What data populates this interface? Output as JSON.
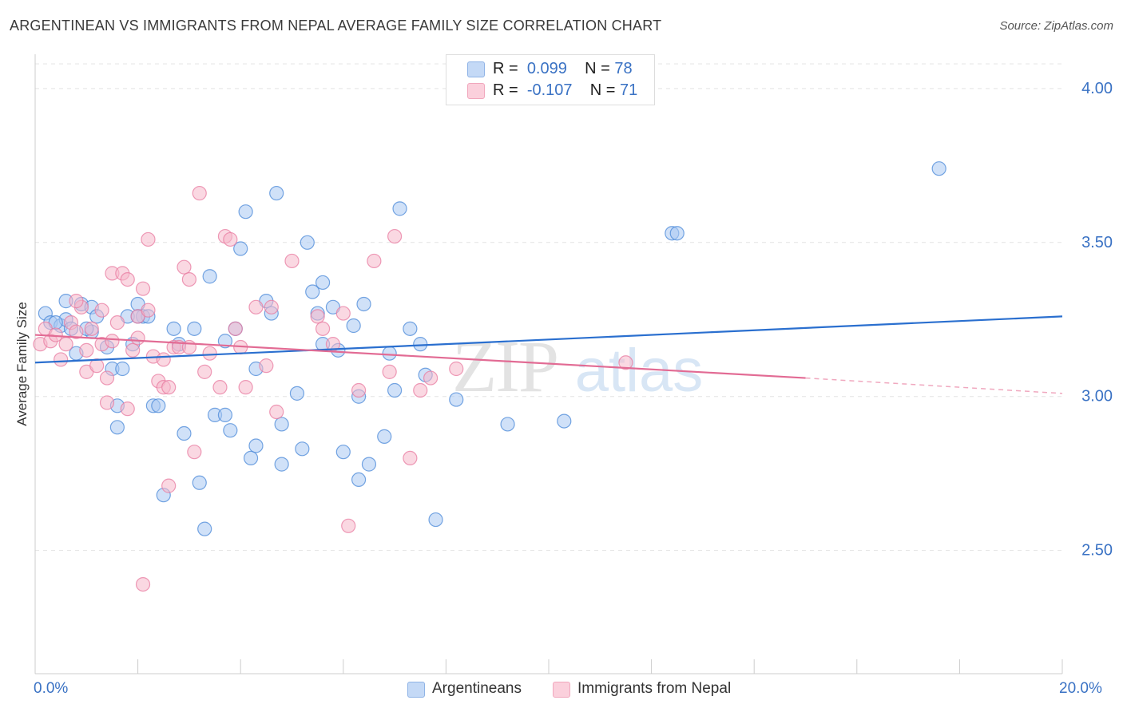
{
  "title": "ARGENTINEAN VS IMMIGRANTS FROM NEPAL AVERAGE FAMILY SIZE CORRELATION CHART",
  "source": "Source: ZipAtlas.com",
  "watermark": {
    "zip": "ZIP",
    "atlas": "atlas"
  },
  "legend_stats": [
    {
      "r_label": "R =",
      "r_value": "0.099",
      "n_label": "N =",
      "n_value": "78",
      "color": "#a9c8f2"
    },
    {
      "r_label": "R =",
      "r_value": "-0.107",
      "n_label": "N =",
      "n_value": "71",
      "color": "#f6b8cb"
    }
  ],
  "chart_data": {
    "type": "scatter",
    "xlabel": "",
    "ylabel": "Average Family Size",
    "xlim": [
      0,
      20
    ],
    "ylim": [
      2.1,
      4.08
    ],
    "x_tick_labels": [
      "0.0%",
      "20.0%"
    ],
    "y_ticks": [
      2.5,
      3.0,
      3.5,
      4.0
    ],
    "y_tick_labels": [
      "2.50",
      "3.00",
      "3.50",
      "4.00"
    ],
    "grid": true,
    "legend_position": "bottom",
    "series": [
      {
        "name": "Argentineans",
        "color": "#4a88d8",
        "fill": "#a9c8f2",
        "trend": {
          "x": [
            0,
            20
          ],
          "y": [
            3.11,
            3.26
          ],
          "color": "#2a6fcf"
        },
        "points": [
          [
            0.2,
            3.27
          ],
          [
            0.3,
            3.24
          ],
          [
            0.5,
            3.23
          ],
          [
            0.6,
            3.25
          ],
          [
            0.7,
            3.22
          ],
          [
            0.6,
            3.31
          ],
          [
            0.8,
            3.14
          ],
          [
            0.9,
            3.3
          ],
          [
            1.1,
            3.29
          ],
          [
            1.2,
            3.26
          ],
          [
            1.1,
            3.21
          ],
          [
            1.4,
            3.16
          ],
          [
            1.5,
            3.09
          ],
          [
            1.6,
            2.9
          ],
          [
            1.7,
            3.09
          ],
          [
            1.6,
            2.97
          ],
          [
            1.8,
            3.26
          ],
          [
            1.9,
            3.17
          ],
          [
            2.0,
            3.3
          ],
          [
            2.1,
            3.26
          ],
          [
            2.2,
            3.26
          ],
          [
            2.3,
            2.97
          ],
          [
            2.4,
            2.97
          ],
          [
            2.5,
            2.68
          ],
          [
            2.7,
            3.22
          ],
          [
            2.8,
            3.17
          ],
          [
            2.9,
            2.88
          ],
          [
            3.1,
            3.22
          ],
          [
            3.2,
            2.72
          ],
          [
            3.3,
            2.57
          ],
          [
            3.4,
            3.39
          ],
          [
            3.5,
            2.94
          ],
          [
            3.7,
            2.94
          ],
          [
            3.8,
            2.89
          ],
          [
            3.9,
            3.22
          ],
          [
            4.0,
            3.48
          ],
          [
            4.1,
            3.6
          ],
          [
            4.2,
            2.8
          ],
          [
            4.3,
            2.84
          ],
          [
            4.3,
            3.09
          ],
          [
            4.5,
            3.31
          ],
          [
            4.6,
            3.27
          ],
          [
            4.7,
            3.66
          ],
          [
            4.8,
            2.91
          ],
          [
            4.8,
            2.78
          ],
          [
            5.1,
            3.01
          ],
          [
            5.2,
            2.83
          ],
          [
            5.3,
            3.5
          ],
          [
            5.4,
            3.34
          ],
          [
            5.5,
            3.27
          ],
          [
            5.6,
            3.37
          ],
          [
            5.6,
            3.17
          ],
          [
            5.9,
            3.15
          ],
          [
            6.0,
            2.82
          ],
          [
            6.2,
            3.23
          ],
          [
            6.3,
            2.73
          ],
          [
            6.3,
            3.0
          ],
          [
            6.4,
            3.3
          ],
          [
            6.5,
            2.78
          ],
          [
            6.8,
            2.87
          ],
          [
            6.9,
            3.14
          ],
          [
            7.1,
            3.61
          ],
          [
            7.3,
            3.22
          ],
          [
            7.5,
            3.17
          ],
          [
            7.6,
            3.07
          ],
          [
            7.8,
            2.6
          ],
          [
            8.2,
            2.99
          ],
          [
            9.2,
            2.91
          ],
          [
            10.3,
            2.92
          ],
          [
            12.4,
            3.53
          ],
          [
            12.5,
            3.53
          ],
          [
            17.6,
            3.74
          ],
          [
            0.4,
            3.24
          ],
          [
            1.0,
            3.22
          ],
          [
            2.0,
            3.26
          ],
          [
            3.7,
            3.18
          ],
          [
            5.8,
            3.29
          ],
          [
            7.0,
            3.02
          ]
        ]
      },
      {
        "name": "Immigrants from Nepal",
        "color": "#e87ba0",
        "fill": "#f6b8cb",
        "trend": {
          "x": [
            0,
            15
          ],
          "y": [
            3.2,
            3.06
          ],
          "color": "#e26b94"
        },
        "trend_dashed": {
          "x": [
            15,
            20
          ],
          "y": [
            3.06,
            3.01
          ],
          "color": "#f0a8bf"
        },
        "points": [
          [
            0.1,
            3.17
          ],
          [
            0.2,
            3.22
          ],
          [
            0.3,
            3.18
          ],
          [
            0.4,
            3.2
          ],
          [
            0.5,
            3.12
          ],
          [
            0.6,
            3.17
          ],
          [
            0.7,
            3.24
          ],
          [
            0.8,
            3.21
          ],
          [
            0.9,
            3.29
          ],
          [
            1.0,
            3.15
          ],
          [
            1.0,
            3.08
          ],
          [
            1.1,
            3.22
          ],
          [
            1.2,
            3.1
          ],
          [
            1.3,
            3.17
          ],
          [
            1.3,
            3.28
          ],
          [
            1.4,
            3.06
          ],
          [
            1.5,
            3.4
          ],
          [
            1.6,
            3.24
          ],
          [
            1.7,
            3.4
          ],
          [
            1.8,
            3.38
          ],
          [
            1.9,
            3.15
          ],
          [
            2.0,
            3.19
          ],
          [
            2.1,
            3.35
          ],
          [
            2.0,
            3.26
          ],
          [
            2.2,
            3.51
          ],
          [
            2.2,
            3.28
          ],
          [
            2.3,
            3.13
          ],
          [
            2.4,
            3.05
          ],
          [
            2.5,
            3.12
          ],
          [
            2.5,
            3.03
          ],
          [
            2.6,
            2.71
          ],
          [
            2.7,
            3.16
          ],
          [
            2.8,
            3.16
          ],
          [
            2.9,
            3.42
          ],
          [
            3.0,
            3.38
          ],
          [
            3.0,
            3.16
          ],
          [
            3.1,
            2.82
          ],
          [
            3.2,
            3.66
          ],
          [
            3.3,
            3.08
          ],
          [
            3.4,
            3.14
          ],
          [
            3.6,
            3.03
          ],
          [
            3.7,
            3.52
          ],
          [
            3.8,
            3.51
          ],
          [
            3.9,
            3.22
          ],
          [
            4.0,
            3.16
          ],
          [
            4.1,
            3.03
          ],
          [
            4.3,
            3.29
          ],
          [
            4.5,
            3.1
          ],
          [
            4.6,
            3.29
          ],
          [
            4.7,
            2.95
          ],
          [
            5.0,
            3.44
          ],
          [
            5.5,
            3.26
          ],
          [
            5.6,
            3.22
          ],
          [
            5.8,
            3.17
          ],
          [
            6.0,
            3.27
          ],
          [
            6.1,
            2.58
          ],
          [
            6.3,
            3.02
          ],
          [
            6.6,
            3.44
          ],
          [
            6.9,
            3.08
          ],
          [
            7.0,
            3.52
          ],
          [
            7.3,
            2.8
          ],
          [
            7.5,
            3.02
          ],
          [
            7.7,
            3.06
          ],
          [
            8.2,
            3.09
          ],
          [
            11.5,
            3.11
          ],
          [
            1.4,
            2.98
          ],
          [
            1.8,
            2.96
          ],
          [
            2.1,
            2.39
          ],
          [
            2.6,
            3.03
          ],
          [
            0.8,
            3.31
          ],
          [
            1.5,
            3.18
          ]
        ]
      }
    ]
  }
}
